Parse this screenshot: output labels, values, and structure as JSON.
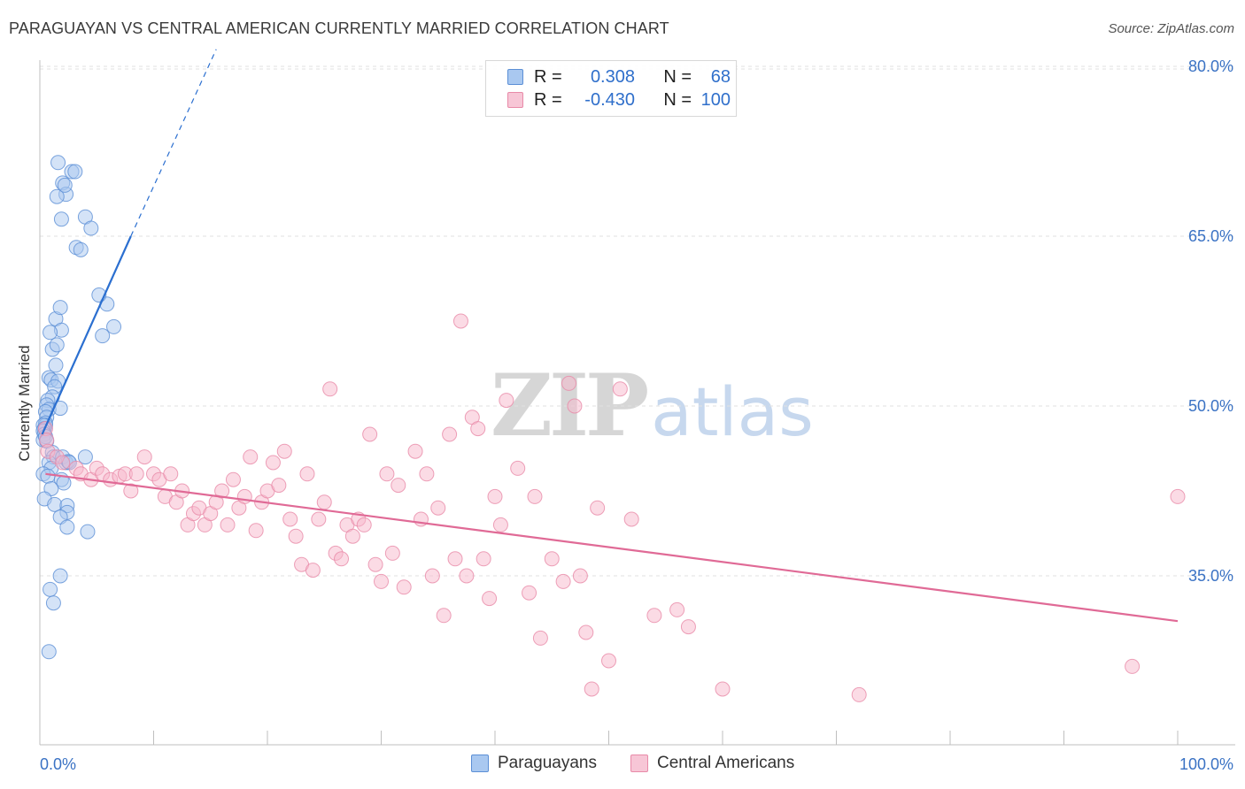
{
  "title": "PARAGUAYAN VS CENTRAL AMERICAN CURRENTLY MARRIED CORRELATION CHART",
  "source": "Source: ZipAtlas.com",
  "watermark": {
    "zip": "ZIP",
    "atlas": "atlas"
  },
  "legend": [
    {
      "r_label": "R =",
      "r_value": "0.308",
      "n_label": "N =",
      "n_value": "68",
      "color": "#a9c8f0"
    },
    {
      "r_label": "R =",
      "r_value": "-0.430",
      "n_label": "N =",
      "n_value": "100",
      "color": "#f7b7cb"
    }
  ],
  "chart_data": {
    "type": "scatter",
    "title": "PARAGUAYAN VS CENTRAL AMERICAN CURRENTLY MARRIED CORRELATION CHART",
    "xlabel": "",
    "ylabel": "Currently Married",
    "xlim": [
      0,
      100
    ],
    "ylim": [
      20,
      80
    ],
    "x_tick_labels": [
      "0.0%",
      "100.0%"
    ],
    "y_ticks": [
      35,
      50,
      65,
      80
    ],
    "y_tick_labels": [
      "35.0%",
      "50.0%",
      "65.0%",
      "80.0%"
    ],
    "grid": true,
    "legend_position": "top-center",
    "series": [
      {
        "name": "Paraguayans",
        "color": "#a9c8f0",
        "edge": "#5b8fd6",
        "trend_color": "#2b6fd0",
        "trend": {
          "x1": 0.2,
          "y1": 47.5,
          "x2": 8.0,
          "y2": 65.0,
          "dash_to_x": 15.5,
          "dash_to_y": 81.5
        },
        "x": [
          1.6,
          2.0,
          2.3,
          2.8,
          3.1,
          1.5,
          2.2,
          4.0,
          4.5,
          1.9,
          3.2,
          3.6,
          5.9,
          5.2,
          1.4,
          1.8,
          1.9,
          5.5,
          6.5,
          0.9,
          1.1,
          1.5,
          1.4,
          0.8,
          1.0,
          1.6,
          1.3,
          1.1,
          0.7,
          0.6,
          0.8,
          1.8,
          0.5,
          0.6,
          0.5,
          0.5,
          0.3,
          0.4,
          0.3,
          0.4,
          0.3,
          0.5,
          0.6,
          1.1,
          1.2,
          2.0,
          4.0,
          2.3,
          2.5,
          2.6,
          0.8,
          1.0,
          0.3,
          0.7,
          1.9,
          2.1,
          1.0,
          0.4,
          1.3,
          2.4,
          2.4,
          1.8,
          2.4,
          4.2,
          1.8,
          0.9,
          1.2,
          0.8
        ],
        "y": [
          71.5,
          69.7,
          68.7,
          70.7,
          70.7,
          68.5,
          69.5,
          66.7,
          65.7,
          66.5,
          64.0,
          63.8,
          59.0,
          59.8,
          57.7,
          58.7,
          56.7,
          56.2,
          57.0,
          56.5,
          55.0,
          55.4,
          53.6,
          52.5,
          52.3,
          52.2,
          51.7,
          50.8,
          50.5,
          50.1,
          49.7,
          49.8,
          49.5,
          49.0,
          48.5,
          48.3,
          48.3,
          48.0,
          47.8,
          47.5,
          47.0,
          47.3,
          46.9,
          45.9,
          45.5,
          45.5,
          45.5,
          45.0,
          45.1,
          45.0,
          45.0,
          44.5,
          44.0,
          43.8,
          43.5,
          43.2,
          42.7,
          41.8,
          41.3,
          41.2,
          40.6,
          40.2,
          39.3,
          38.9,
          35.0,
          33.8,
          32.6,
          28.3
        ]
      },
      {
        "name": "Central Americans",
        "color": "#f7b7cb",
        "edge": "#e88aa8",
        "trend_color": "#e06a96",
        "trend": {
          "x1": 0.5,
          "y1": 44.0,
          "x2": 100.0,
          "y2": 31.0
        },
        "x": [
          0.5,
          0.6,
          0.7,
          1.5,
          2.0,
          3.2,
          3.6,
          4.5,
          5.0,
          5.5,
          6.2,
          7.0,
          7.5,
          8.0,
          8.5,
          9.2,
          10.0,
          10.5,
          11.0,
          11.5,
          12.0,
          12.5,
          13.0,
          13.5,
          14.0,
          14.5,
          15.0,
          15.5,
          16.0,
          16.5,
          17.0,
          17.5,
          18.0,
          18.5,
          19.0,
          19.5,
          20.0,
          20.5,
          21.0,
          21.5,
          22.0,
          22.5,
          23.0,
          23.5,
          24.0,
          24.5,
          25.0,
          25.5,
          26.0,
          26.5,
          27.0,
          27.5,
          28.0,
          28.5,
          29.0,
          29.5,
          30.0,
          30.5,
          31.0,
          31.5,
          32.0,
          33.0,
          33.5,
          34.0,
          34.5,
          35.0,
          35.5,
          36.0,
          36.5,
          37.0,
          37.5,
          38.0,
          38.5,
          39.0,
          39.5,
          40.0,
          40.5,
          41.0,
          42.0,
          43.0,
          43.5,
          44.0,
          45.0,
          46.0,
          46.5,
          47.0,
          47.5,
          48.0,
          48.5,
          49.0,
          50.0,
          51.0,
          52.0,
          54.0,
          56.0,
          57.0,
          60.0,
          72.0,
          96.0,
          100.0
        ],
        "y": [
          48.0,
          47.0,
          46.0,
          45.5,
          45.0,
          44.5,
          44.0,
          43.5,
          44.5,
          44.0,
          43.5,
          43.8,
          44.0,
          42.5,
          44.0,
          45.5,
          44.0,
          43.5,
          42.0,
          44.0,
          41.5,
          42.5,
          39.5,
          40.5,
          41.0,
          39.5,
          40.5,
          41.5,
          42.5,
          39.5,
          43.5,
          41.0,
          42.0,
          45.5,
          39.0,
          41.5,
          42.5,
          45.0,
          43.0,
          46.0,
          40.0,
          38.5,
          36.0,
          44.0,
          35.5,
          40.0,
          41.5,
          51.5,
          37.0,
          36.5,
          39.5,
          38.5,
          40.0,
          39.5,
          47.5,
          36.0,
          34.5,
          44.0,
          37.0,
          43.0,
          34.0,
          46.0,
          40.0,
          44.0,
          35.0,
          41.0,
          31.5,
          47.5,
          36.5,
          57.5,
          35.0,
          49.0,
          48.0,
          36.5,
          33.0,
          42.0,
          39.5,
          50.5,
          44.5,
          33.5,
          42.0,
          29.5,
          36.5,
          34.5,
          52.0,
          50.0,
          35.0,
          30.0,
          25.0,
          41.0,
          27.5,
          51.5,
          40.0,
          31.5,
          32.0,
          30.5,
          25.0,
          24.5,
          27.0,
          42.0
        ]
      }
    ]
  }
}
